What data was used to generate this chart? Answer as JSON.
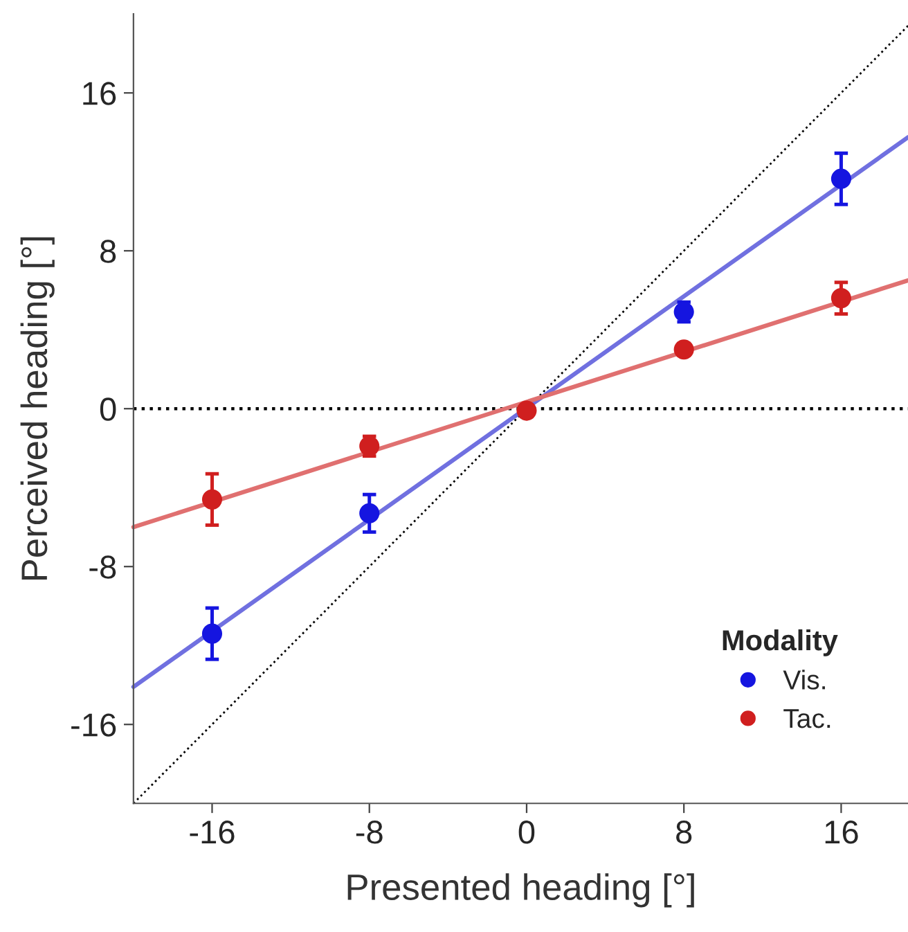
{
  "chart_data": {
    "type": "scatter",
    "xlabel": "Presented heading [°]",
    "ylabel": "Perceived heading [°]",
    "legend_title": "Modality",
    "legend": "bottom right",
    "grid": false,
    "xlim": [
      -20,
      19.4
    ],
    "xticks": [
      -16,
      -8,
      0,
      8,
      16
    ],
    "ylim": [
      -20,
      20
    ],
    "yticks": [
      16,
      8,
      0,
      -8,
      -16
    ],
    "ref_lines": [
      {
        "axis": "y",
        "value": 0,
        "color": "#000000",
        "line_style": "dotted"
      }
    ],
    "series": [
      {
        "type": "line",
        "marker": "none",
        "color": "#000000",
        "line_style": "dotted",
        "x": [
          -20,
          19.4
        ],
        "values": [
          -20,
          19.4
        ]
      },
      {
        "type": "line",
        "marker": "none",
        "color": "#7070e0",
        "line_style": "solid",
        "x": [
          -20,
          19.4
        ],
        "values": [
          -14.1,
          13.75
        ]
      },
      {
        "type": "line",
        "marker": "none",
        "color": "#e07070",
        "line_style": "solid",
        "x": [
          -20,
          19.4
        ],
        "values": [
          -6.0,
          6.5
        ]
      },
      {
        "marker": "circle",
        "name": "Vis.",
        "color": "#1515e0",
        "x": [
          -16,
          -8,
          0,
          8,
          16
        ],
        "values": [
          -11.4,
          -5.3,
          null,
          4.9,
          11.65
        ],
        "errors": [
          1.3,
          0.95,
          null,
          0.5,
          1.3
        ]
      },
      {
        "marker": "circle",
        "name": "Tac.",
        "color": "#d01f1f",
        "x": [
          -16,
          -8,
          0,
          8,
          16
        ],
        "values": [
          -4.6,
          -1.9,
          -0.1,
          3.0,
          5.6
        ],
        "errors": [
          1.3,
          0.5,
          0.3,
          0.3,
          0.8
        ]
      }
    ]
  }
}
